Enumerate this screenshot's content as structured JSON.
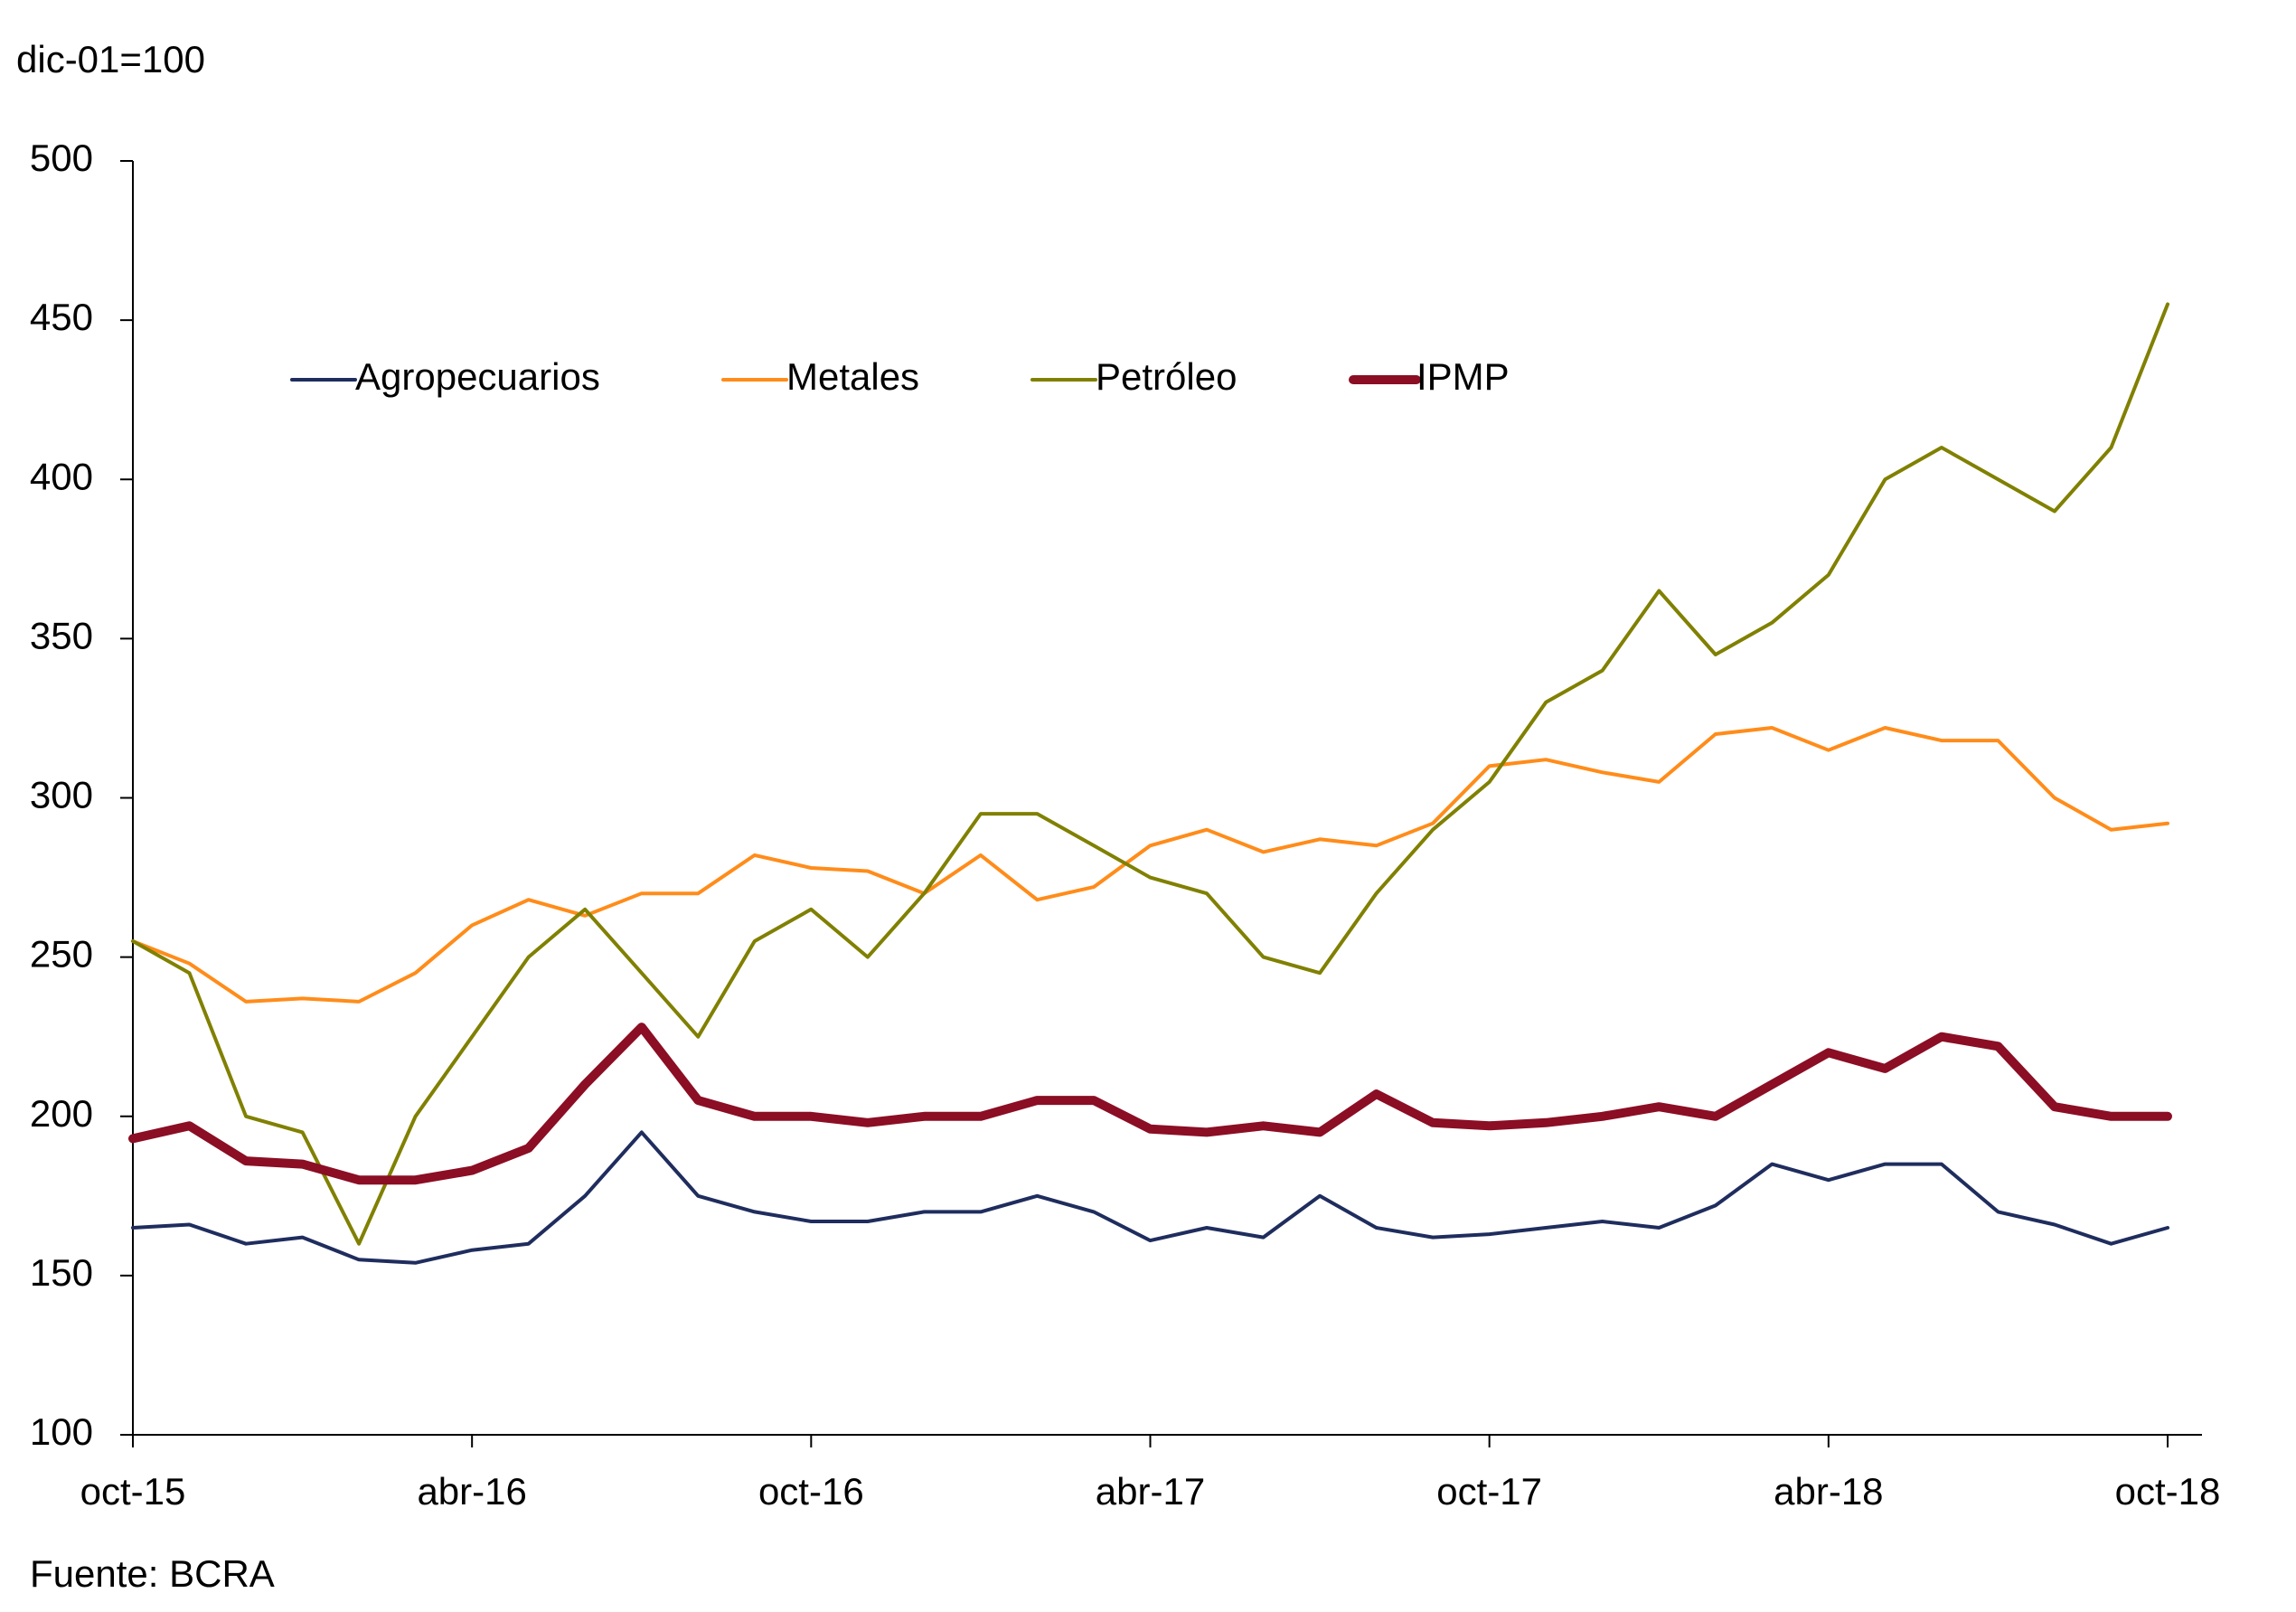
{
  "chart_data": {
    "type": "line",
    "title": "dic-01=100",
    "source": "Fuente: BCRA",
    "categories": [
      "oct-15",
      null,
      null,
      null,
      null,
      null,
      "abr-16",
      null,
      null,
      null,
      null,
      null,
      "oct-16",
      null,
      null,
      null,
      null,
      null,
      "abr-17",
      null,
      null,
      null,
      null,
      null,
      "oct-17",
      null,
      null,
      null,
      null,
      null,
      "abr-18",
      null,
      null,
      null,
      null,
      null,
      "oct-18"
    ],
    "series": [
      {
        "name": "Agropecuarios",
        "color": "#1f2d5e",
        "width": 4,
        "values": [
          165,
          166,
          160,
          162,
          155,
          154,
          158,
          160,
          175,
          195,
          175,
          170,
          167,
          167,
          170,
          170,
          175,
          170,
          161,
          165,
          162,
          175,
          165,
          162,
          163,
          165,
          167,
          165,
          172,
          185,
          180,
          185,
          185,
          170,
          166,
          160,
          165
        ]
      },
      {
        "name": "Metales",
        "color": "#ff8c1a",
        "width": 4,
        "values": [
          255,
          248,
          236,
          237,
          236,
          245,
          260,
          268,
          263,
          270,
          270,
          282,
          278,
          277,
          270,
          282,
          268,
          272,
          285,
          290,
          283,
          287,
          285,
          292,
          310,
          312,
          308,
          305,
          320,
          322,
          315,
          322,
          318,
          318,
          300,
          290,
          292
        ]
      },
      {
        "name": "Petróleo",
        "color": "#808000",
        "width": 4,
        "values": [
          255,
          245,
          200,
          195,
          160,
          200,
          225,
          250,
          265,
          245,
          225,
          255,
          265,
          250,
          270,
          295,
          295,
          285,
          275,
          270,
          250,
          245,
          270,
          290,
          305,
          330,
          340,
          365,
          345,
          355,
          370,
          400,
          410,
          400,
          390,
          410,
          455
        ]
      },
      {
        "name": "IPMP",
        "color": "#8b0e24",
        "width": 10,
        "values": [
          193,
          197,
          186,
          185,
          180,
          180,
          183,
          190,
          210,
          228,
          205,
          200,
          200,
          198,
          200,
          200,
          205,
          205,
          196,
          195,
          197,
          195,
          207,
          198,
          197,
          198,
          200,
          203,
          200,
          210,
          220,
          215,
          225,
          222,
          203,
          200,
          200
        ]
      }
    ],
    "ylim": [
      100,
      500
    ],
    "yticks": [
      100,
      150,
      200,
      250,
      300,
      350,
      400,
      450,
      500
    ],
    "grid": false,
    "legend": "top"
  }
}
